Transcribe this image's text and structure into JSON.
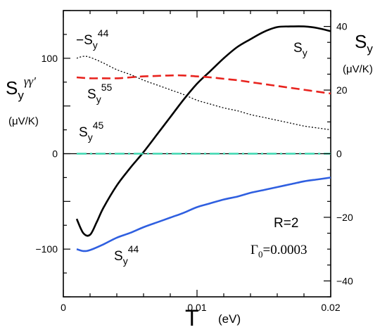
{
  "chart_data": {
    "type": "line",
    "xlabel": "T",
    "xunit": "(eV)",
    "xlim": [
      0,
      0.02
    ],
    "x_ticks": [
      "0",
      "0.01",
      "0.02"
    ],
    "ylabel_left": "S",
    "ylabel_left_sub": "y",
    "ylabel_left_sup": "γγ′",
    "ylabel_left_unit": "(μV/K)",
    "ylim_left": [
      -150,
      150
    ],
    "y_ticks_left": [
      -100,
      0,
      100
    ],
    "ylabel_right": "S",
    "ylabel_right_sub": "y",
    "ylabel_right_unit": "(μV/K)",
    "ylim_right": [
      -45,
      45
    ],
    "y_ticks_right": [
      -40,
      -20,
      0,
      20,
      40
    ],
    "grid": false,
    "series": [
      {
        "name": "S_y",
        "label_main": "S",
        "label_sub": "y",
        "label_sup": "",
        "axis": "right",
        "color": "#000000",
        "style": "solid",
        "x": [
          0.001,
          0.0015,
          0.002,
          0.0025,
          0.003,
          0.004,
          0.005,
          0.006,
          0.007,
          0.008,
          0.009,
          0.01,
          0.011,
          0.012,
          0.013,
          0.014,
          0.015,
          0.016,
          0.017,
          0.018,
          0.019,
          0.02
        ],
        "y": [
          -20.5,
          -25,
          -25.5,
          -21.5,
          -17,
          -10,
          -4.5,
          0.5,
          6,
          11.5,
          17,
          22,
          26,
          30,
          33.5,
          36,
          38.3,
          39.8,
          40,
          40,
          39.5,
          38.5
        ]
      },
      {
        "name": "-S_y^44",
        "label_main": "−S",
        "label_sub": "y",
        "label_sup": "44",
        "axis": "left",
        "color": "#000000",
        "style": "dotted",
        "x": [
          0.001,
          0.0015,
          0.002,
          0.003,
          0.004,
          0.005,
          0.006,
          0.007,
          0.008,
          0.009,
          0.01,
          0.011,
          0.012,
          0.013,
          0.014,
          0.015,
          0.016,
          0.017,
          0.018,
          0.019,
          0.02
        ],
        "y": [
          100,
          102,
          101,
          95,
          88,
          83,
          77,
          72,
          67,
          62,
          56,
          52,
          48,
          45,
          41,
          38,
          35,
          32,
          29,
          27,
          25
        ]
      },
      {
        "name": "S_y^55",
        "label_main": "S",
        "label_sub": "y",
        "label_sup": "55",
        "axis": "left",
        "color": "#e8231e",
        "style": "dashed",
        "x": [
          0.001,
          0.002,
          0.003,
          0.004,
          0.005,
          0.006,
          0.007,
          0.008,
          0.009,
          0.01,
          0.011,
          0.012,
          0.013,
          0.014,
          0.015,
          0.016,
          0.017,
          0.018,
          0.019,
          0.02
        ],
        "y": [
          80,
          79,
          79,
          79,
          80,
          81,
          81.5,
          82,
          82,
          81,
          80,
          78.5,
          77,
          75,
          73,
          71,
          69,
          67,
          65,
          63
        ]
      },
      {
        "name": "S_y^45",
        "label_main": "S",
        "label_sub": "y",
        "label_sup": "45",
        "axis": "left",
        "color": "#3cd7b0",
        "style": "dashdot",
        "x": [
          0.001,
          0.02
        ],
        "y": [
          0,
          0
        ]
      },
      {
        "name": "S_y^44",
        "label_main": "S",
        "label_sub": "y",
        "label_sup": "44",
        "axis": "left",
        "color": "#2f5fe0",
        "style": "solid",
        "x": [
          0.001,
          0.0015,
          0.002,
          0.003,
          0.004,
          0.005,
          0.006,
          0.007,
          0.008,
          0.009,
          0.01,
          0.011,
          0.012,
          0.013,
          0.014,
          0.015,
          0.016,
          0.017,
          0.018,
          0.019,
          0.02
        ],
        "y": [
          -100,
          -102,
          -101,
          -95,
          -88,
          -83,
          -77,
          -72,
          -67,
          -62,
          -56,
          -52,
          -48,
          -45,
          -41,
          -38,
          -35,
          -32,
          -29,
          -27,
          -25
        ]
      }
    ],
    "annotations": [
      {
        "text": "R=2"
      },
      {
        "text_main": "Γ",
        "text_sub": "0",
        "text_rest": "=0.0003"
      }
    ],
    "zero_line_color": "#000000"
  }
}
